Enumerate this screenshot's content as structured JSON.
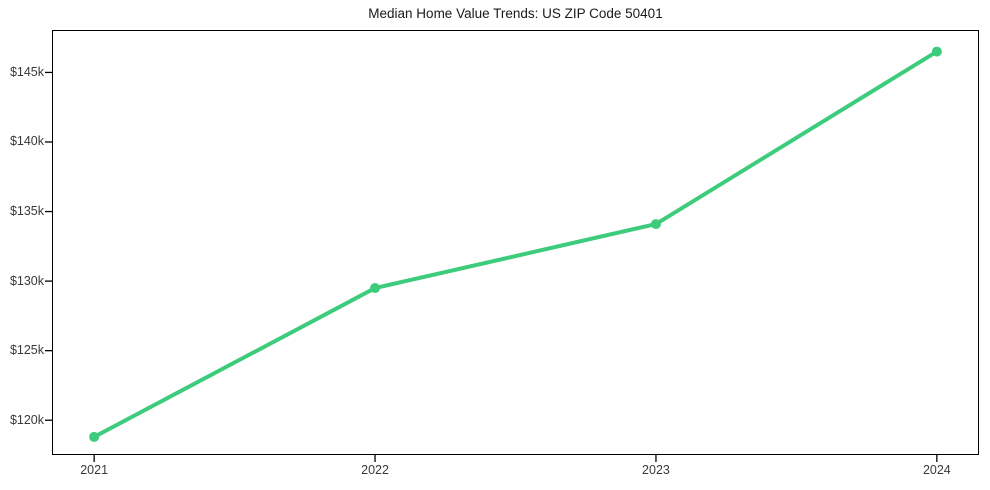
{
  "figure": {
    "title": "Median Home Value Trends: US ZIP Code 50401"
  },
  "colors": {
    "line": "#3dcb7c",
    "marker": "#3dcb7c",
    "axis": "#000000",
    "tick_label": "#3a3a3a",
    "title": "#1a1a1a",
    "background": "#ffffff"
  },
  "chart_data": {
    "type": "line",
    "title": "Median Home Value Trends: US ZIP Code 50401",
    "xlabel": "",
    "ylabel": "",
    "x": [
      2021,
      2022,
      2023,
      2024
    ],
    "x_tick_labels": [
      "2021",
      "2022",
      "2023",
      "2024"
    ],
    "series": [
      {
        "name": "Median Home Value",
        "values": [
          118800,
          129500,
          134100,
          146500
        ]
      }
    ],
    "y_ticks": [
      120000,
      125000,
      130000,
      135000,
      140000,
      145000
    ],
    "y_tick_labels": [
      "$120k",
      "$125k",
      "$130k",
      "$135k",
      "$140k",
      "$145k"
    ],
    "ylim": [
      117500,
      148050
    ],
    "xlim": [
      2020.85,
      2024.15
    ],
    "grid": false,
    "legend": "none",
    "line_width": 4,
    "marker": "circle",
    "marker_radius": 5
  }
}
